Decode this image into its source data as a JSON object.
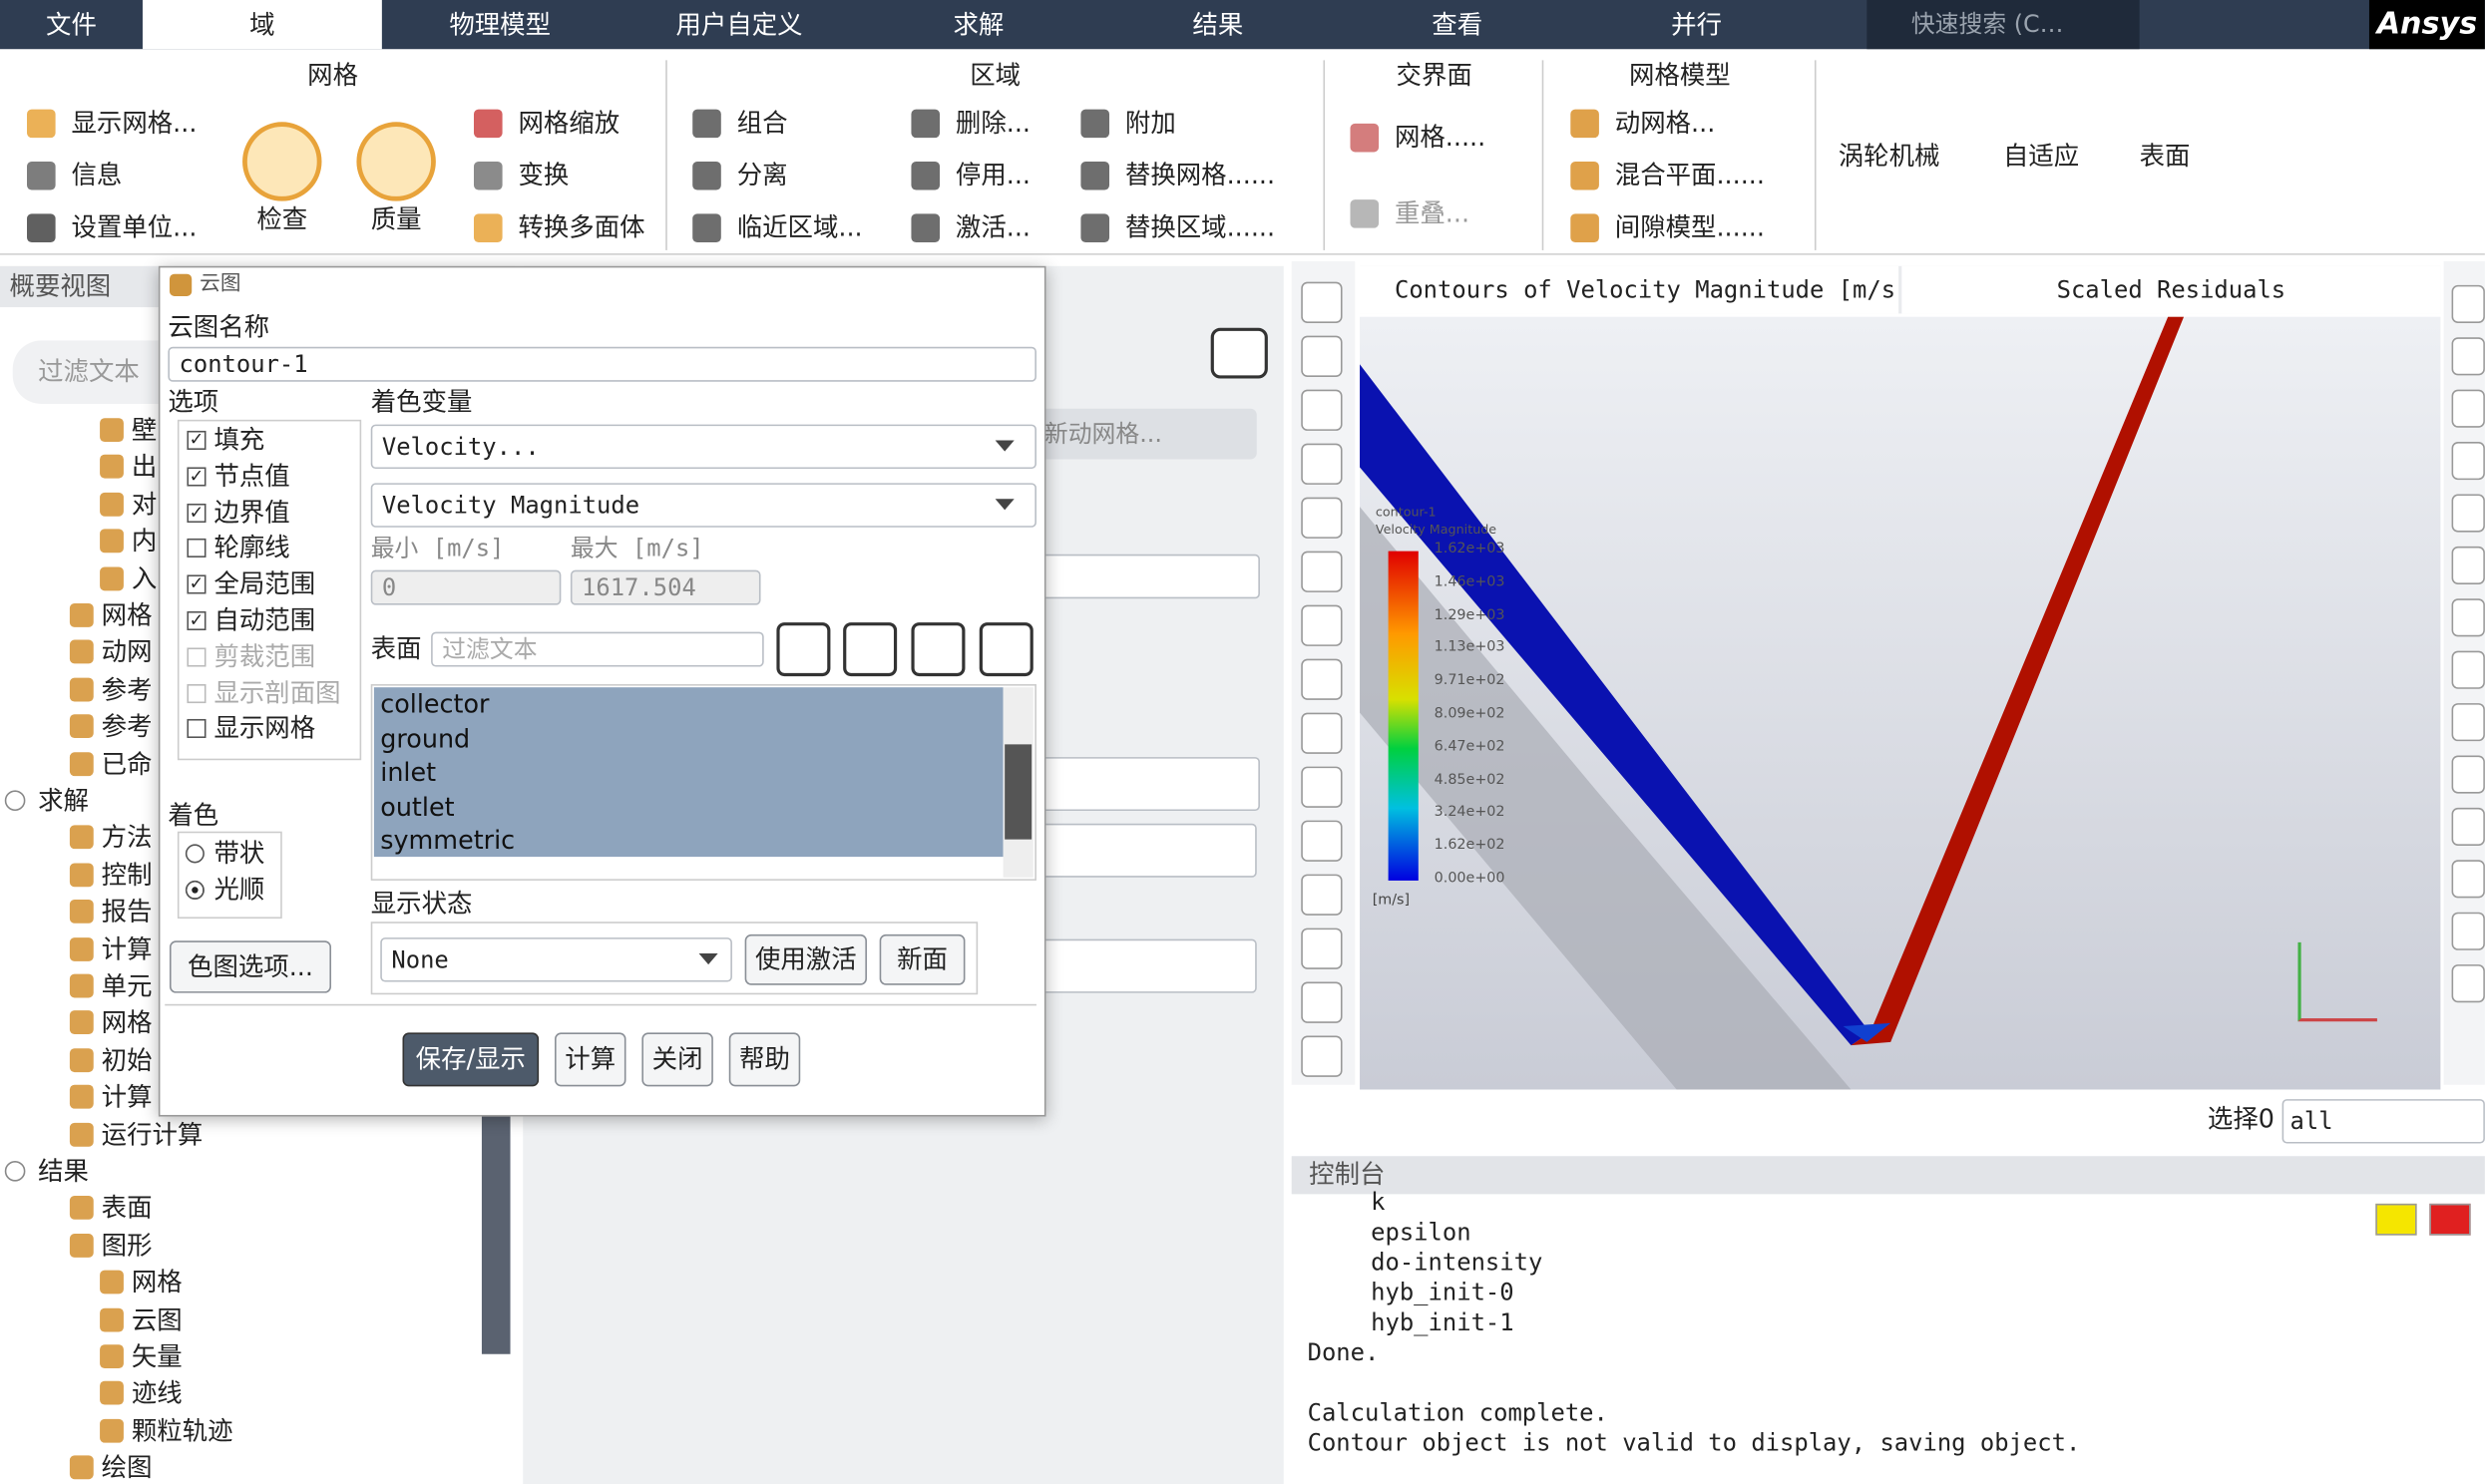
{
  "menu": {
    "tabs": [
      "文件",
      "域",
      "物理模型",
      "用户自定义",
      "求解",
      "结果",
      "查看",
      "并行"
    ],
    "active": 1,
    "search": "快速搜索 (C…",
    "brand": "Ansys"
  },
  "ribbon": {
    "mesh": {
      "title": "网格",
      "items": [
        "显示网格...",
        "信息",
        "设置单位...",
        "检查",
        "质量",
        "网格缩放",
        "变换",
        "转换多面体"
      ]
    },
    "zones": {
      "title": "区域",
      "items": [
        "组合",
        "分离",
        "临近区域...",
        "删除...",
        "停用...",
        "激活...",
        "附加",
        "替换网格......",
        "替换区域......"
      ]
    },
    "interfaces": {
      "title": "交界面",
      "items": [
        "网格.....",
        "重叠..."
      ]
    },
    "mesh_models": {
      "title": "网格模型",
      "items": [
        "动网格...",
        "混合平面......",
        "间隙模型......"
      ]
    },
    "others": [
      "涡轮机械",
      "自适应",
      "表面"
    ]
  },
  "outline": {
    "title": "概要视图",
    "filter": "过滤文本",
    "items": [
      {
        "label": "壁",
        "level": 2
      },
      {
        "label": "出",
        "level": 2
      },
      {
        "label": "对",
        "level": 2
      },
      {
        "label": "内",
        "level": 2
      },
      {
        "label": "入",
        "level": 2
      },
      {
        "label": "网格",
        "level": 1
      },
      {
        "label": "动网",
        "level": 1
      },
      {
        "label": "参考",
        "level": 1
      },
      {
        "label": "参考",
        "level": 1
      },
      {
        "label": "已命",
        "level": 1
      },
      {
        "label": "求解",
        "level": 0
      },
      {
        "label": "方法",
        "level": 1
      },
      {
        "label": "控制",
        "level": 1
      },
      {
        "label": "报告",
        "level": 1
      },
      {
        "label": "计算",
        "level": 1
      },
      {
        "label": "单元",
        "level": 1
      },
      {
        "label": "网格",
        "level": 1
      },
      {
        "label": "初始",
        "level": 1
      },
      {
        "label": "计算",
        "level": 1
      },
      {
        "label": "运行计算",
        "level": 1
      },
      {
        "label": "结果",
        "level": 0
      },
      {
        "label": "表面",
        "level": 1
      },
      {
        "label": "图形",
        "level": 1
      },
      {
        "label": "网格",
        "level": 2
      },
      {
        "label": "云图",
        "level": 2
      },
      {
        "label": "矢量",
        "level": 2
      },
      {
        "label": "迹线",
        "level": 2
      },
      {
        "label": "颗粒轨迹",
        "level": 2
      },
      {
        "label": "绘图",
        "level": 1
      }
    ]
  },
  "panel": {
    "dynamic_mesh": "新动网格..."
  },
  "dialog": {
    "title": "云图",
    "name_label": "云图名称",
    "name": "contour-1",
    "options_label": "选项",
    "options": [
      {
        "label": "填充",
        "checked": true,
        "enabled": true
      },
      {
        "label": "节点值",
        "checked": true,
        "enabled": true
      },
      {
        "label": "边界值",
        "checked": true,
        "enabled": true
      },
      {
        "label": "轮廓线",
        "checked": false,
        "enabled": true
      },
      {
        "label": "全局范围",
        "checked": true,
        "enabled": true
      },
      {
        "label": "自动范围",
        "checked": true,
        "enabled": true
      },
      {
        "label": "剪裁范围",
        "checked": false,
        "enabled": false
      },
      {
        "label": "显示剖面图",
        "checked": false,
        "enabled": false
      },
      {
        "label": "显示网格",
        "checked": false,
        "enabled": true
      }
    ],
    "color_var_label": "着色变量",
    "variable_group": "Velocity...",
    "variable": "Velocity Magnitude",
    "min_label": "最小 [m/s]",
    "max_label": "最大 [m/s]",
    "min": "0",
    "max": "1617.504",
    "surfaces_label": "表面",
    "surfaces_filter": "过滤文本",
    "surfaces": [
      "collector",
      "ground",
      "inlet",
      "outlet",
      "symmetric"
    ],
    "coloring_label": "着色",
    "coloring": [
      "带状",
      "光顺"
    ],
    "coloring_selected": 1,
    "colormap_button": "色图选项...",
    "display_state_label": "显示状态",
    "display_state": "None",
    "use_active": "使用激活",
    "new_surface": "新面",
    "buttons": [
      "保存/显示",
      "计算",
      "关闭",
      "帮助"
    ]
  },
  "graphics": {
    "tabs": [
      "Contours of Velocity Magnitude [m/s",
      "Scaled Residuals"
    ],
    "legend": {
      "title": "contour-1",
      "variable": "Velocity Magnitude",
      "labels": [
        "1.62e+03",
        "1.46e+03",
        "1.29e+03",
        "1.13e+03",
        "9.71e+02",
        "8.09e+02",
        "6.47e+02",
        "4.85e+02",
        "3.24e+02",
        "1.62e+02",
        "0.00e+00"
      ],
      "unit": "[m/s]"
    },
    "select_label": "选择0",
    "select_value": "all"
  },
  "console": {
    "title": "控制台",
    "lines": [
      "k",
      "epsilon",
      "do-intensity",
      "hyb_init-0",
      "hyb_init-1"
    ],
    "done": "Done.",
    "messages": [
      "Calculation complete.",
      "Contour object is not valid to display, saving object."
    ]
  }
}
